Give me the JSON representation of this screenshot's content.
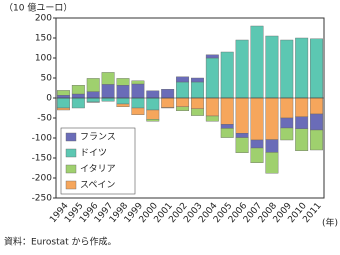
{
  "chart_data": {
    "type": "bar",
    "stacked": true,
    "y_label": "（10 億ユーロ）",
    "x_label": "(年)",
    "source": "資料：Eurostat から作成。",
    "categories": [
      "1994",
      "1995",
      "1996",
      "1997",
      "1998",
      "1999",
      "2000",
      "2001",
      "2002",
      "2003",
      "2004",
      "2005",
      "2006",
      "2007",
      "2008",
      "2009",
      "2010",
      "2011"
    ],
    "series": [
      {
        "name": "フランス",
        "color": "#6a6cb8",
        "values": [
          7,
          10,
          16,
          33,
          32,
          35,
          18,
          22,
          13,
          10,
          8,
          -10,
          -11,
          -20,
          -32,
          -25,
          -30,
          -40
        ]
      },
      {
        "name": "ドイツ",
        "color": "#5cc7b2",
        "values": [
          -25,
          -25,
          -10,
          -8,
          -15,
          -25,
          -30,
          0,
          40,
          40,
          100,
          115,
          145,
          180,
          155,
          145,
          150,
          148
        ]
      },
      {
        "name": "イタリア",
        "color": "#9fd06e",
        "values": [
          12,
          22,
          33,
          30,
          17,
          8,
          -5,
          -1,
          -10,
          -17,
          -13,
          -23,
          -38,
          -37,
          -52,
          -30,
          -55,
          -50
        ]
      },
      {
        "name": "スペイン",
        "color": "#f6a65c",
        "values": [
          -5,
          0,
          -1,
          1,
          -7,
          -17,
          -23,
          -24,
          -22,
          -27,
          -45,
          -66,
          -88,
          -105,
          -104,
          -50,
          -47,
          -40
        ]
      }
    ],
    "ylim": [
      -250,
      200
    ],
    "yticks": [
      -250,
      -200,
      -150,
      -100,
      -50,
      0,
      50,
      100,
      150,
      200
    ]
  }
}
